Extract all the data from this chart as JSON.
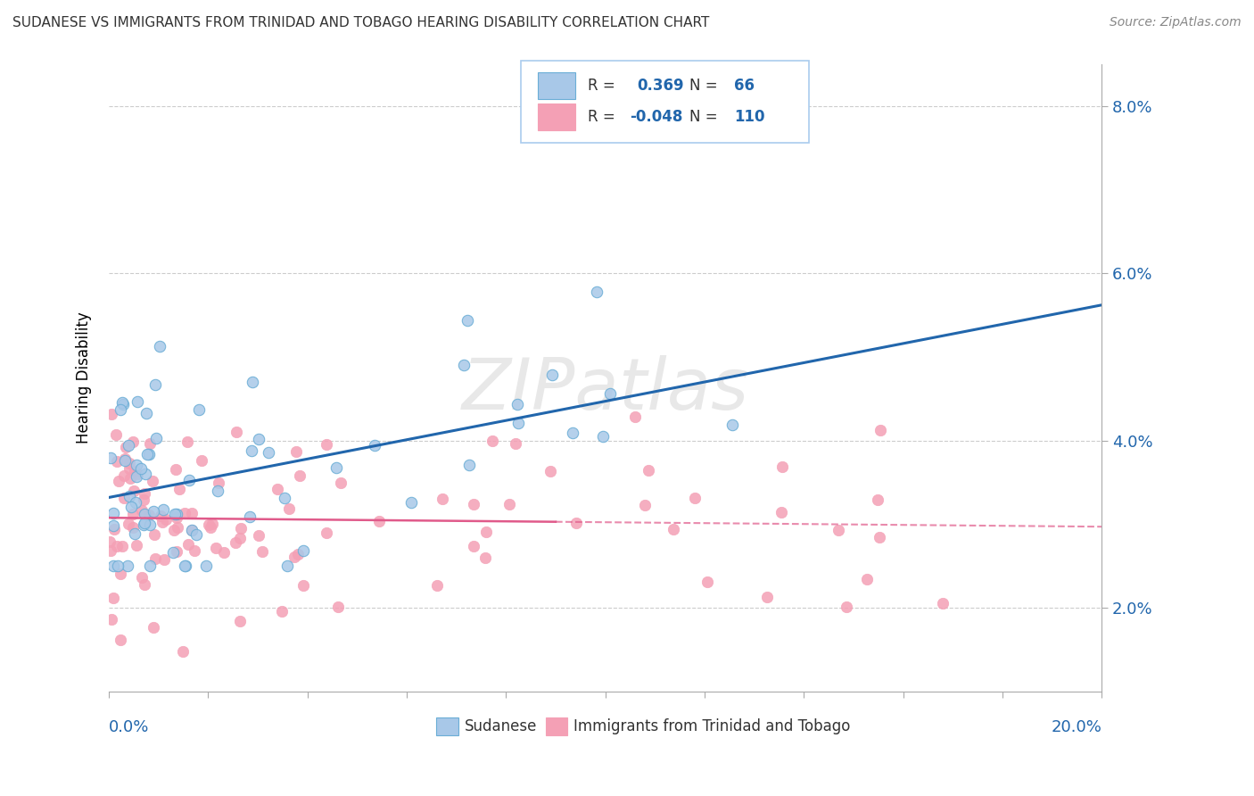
{
  "title": "SUDANESE VS IMMIGRANTS FROM TRINIDAD AND TOBAGO HEARING DISABILITY CORRELATION CHART",
  "source": "Source: ZipAtlas.com",
  "ylabel_label": "Hearing Disability",
  "watermark": "ZIPatlas",
  "blue_color": "#a8c8e8",
  "pink_color": "#f4a0b5",
  "blue_line_color": "#2166ac",
  "pink_line_color": "#e05a8a",
  "sudanese_legend": "Sudanese",
  "tt_legend": "Immigrants from Trinidad and Tobago",
  "xlim": [
    0.0,
    20.0
  ],
  "ylim": [
    1.0,
    8.5
  ],
  "blue_R": 0.369,
  "blue_N": 66,
  "pink_R": -0.048,
  "pink_N": 110,
  "grid_color": "#cccccc",
  "background_color": "#ffffff",
  "dpi": 100,
  "figsize": [
    14.06,
    8.92
  ],
  "ytick_positions": [
    2.0,
    4.0,
    6.0,
    8.0
  ],
  "xtick_labels_show": [
    "0.0%",
    "20.0%"
  ],
  "title_color": "#333333",
  "source_color": "#888888",
  "axis_label_color": "#2166ac"
}
